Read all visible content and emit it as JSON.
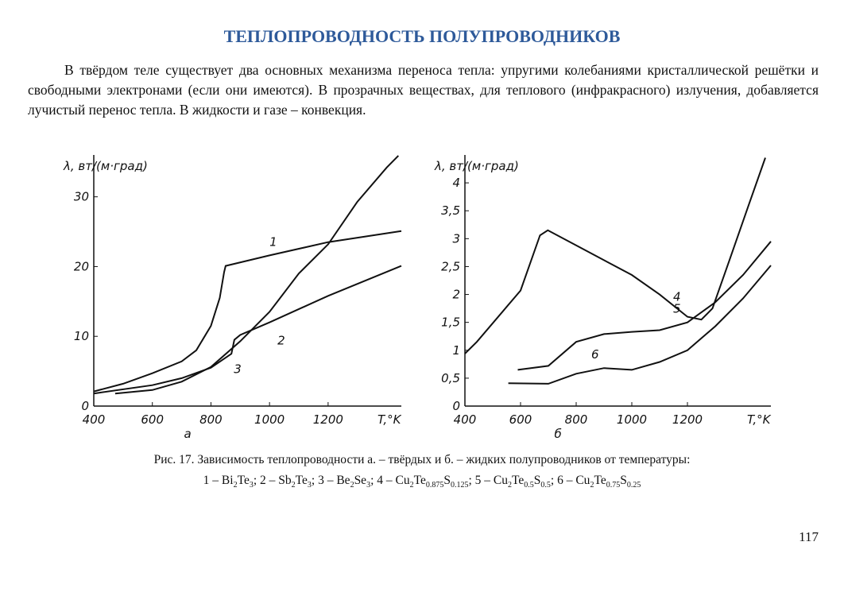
{
  "header": {
    "title": "ТЕПЛОПРОВОДНОСТЬ ПОЛУПРОВОДНИКОВ"
  },
  "paragraph": "В твёрдом теле существует два основных механизма переноса тепла: упругими колебаниями кристаллической решётки и свободными электронами (если они имеются). В прозрачных веществах, для теплового (инфракрасного) излучения, добавляется лучистый перенос тепла. В жидкости и газе – конвекция.",
  "chart_data": [
    {
      "type": "line",
      "subtitle": "а",
      "x_label": "T,°K",
      "y_label": "λ, вт/(м·град)",
      "xlim": [
        400,
        1450
      ],
      "ylim": [
        0,
        36
      ],
      "xticks": [
        400,
        600,
        800,
        1000,
        1200
      ],
      "yticks": [
        0,
        10,
        20,
        30
      ],
      "series": [
        {
          "name": "1",
          "color": "#111",
          "x": [
            400,
            500,
            600,
            700,
            750,
            800,
            830,
            845,
            850,
            1000,
            1200,
            1450
          ],
          "values": [
            2.1,
            3.2,
            4.7,
            6.4,
            8,
            11.5,
            15.5,
            19.2,
            20.1,
            21.6,
            23.5,
            25.1
          ]
        },
        {
          "name": "2",
          "color": "#111",
          "x": [
            400,
            600,
            700,
            800,
            870,
            880,
            900,
            1000,
            1200,
            1450
          ],
          "values": [
            1.8,
            3,
            4,
            5.5,
            7.5,
            9.5,
            10.2,
            12,
            15.8,
            20.1
          ]
        },
        {
          "name": "3",
          "color": "#111",
          "x": [
            473,
            600,
            700,
            800,
            900,
            1000,
            1100,
            1200,
            1300,
            1400,
            1440
          ],
          "values": [
            1.8,
            2.3,
            3.5,
            5.6,
            9.3,
            13.5,
            19,
            23.2,
            29.3,
            34.2,
            35.9
          ]
        }
      ]
    },
    {
      "type": "line",
      "subtitle": "б",
      "x_label": "T,°K",
      "y_label": "λ, вт/(м·град)",
      "xlim": [
        400,
        1500
      ],
      "ylim": [
        0,
        4.5
      ],
      "xticks": [
        400,
        600,
        800,
        1000,
        1200
      ],
      "yticks": [
        0,
        {
          "value": 0.5,
          "label": "0,5"
        },
        1,
        {
          "value": 1.5,
          "label": "1,5"
        },
        2,
        {
          "value": 2.5,
          "label": "2,5"
        },
        3,
        {
          "value": 3.5,
          "label": "3,5"
        },
        4
      ],
      "series": [
        {
          "name": "4",
          "color": "#111",
          "x": [
            400,
            443,
            600,
            670,
            698,
            800,
            1000,
            1100,
            1200,
            1250,
            1290,
            1350,
            1420,
            1480
          ],
          "values": [
            0.94,
            1.15,
            2.07,
            3.06,
            3.15,
            2.88,
            2.35,
            2,
            1.6,
            1.55,
            1.75,
            2.6,
            3.6,
            4.45
          ]
        },
        {
          "name": "5",
          "color": "#111",
          "x": [
            590,
            700,
            800,
            900,
            1000,
            1100,
            1200,
            1300,
            1400,
            1500
          ],
          "values": [
            0.65,
            0.72,
            1.15,
            1.29,
            1.33,
            1.36,
            1.5,
            1.86,
            2.35,
            2.95
          ]
        },
        {
          "name": "6",
          "color": "#111",
          "x": [
            556,
            700,
            800,
            900,
            1000,
            1100,
            1200,
            1300,
            1400,
            1500
          ],
          "values": [
            0.41,
            0.4,
            0.58,
            0.68,
            0.65,
            0.79,
            1,
            1.43,
            1.93,
            2.52
          ]
        }
      ]
    }
  ],
  "caption": {
    "line1": "Рис. 17. Зависимость теплопроводности а. – твёрдых и б. – жидких полупроводников от температуры:",
    "line2": [
      {
        "text": "1 – Bi"
      },
      {
        "sub": "2"
      },
      {
        "text": "Te"
      },
      {
        "sub": "3"
      },
      {
        "text": "; 2 – Sb"
      },
      {
        "sub": "2"
      },
      {
        "text": "Te"
      },
      {
        "sub": "3"
      },
      {
        "text": "; 3 – Be"
      },
      {
        "sub": "2"
      },
      {
        "text": "Se"
      },
      {
        "sub": "3"
      },
      {
        "text": "; 4 – Cu"
      },
      {
        "sub": "2"
      },
      {
        "text": "Te"
      },
      {
        "sub": "0.875"
      },
      {
        "text": "S"
      },
      {
        "sub": "0.125"
      },
      {
        "text": "; 5 – Cu"
      },
      {
        "sub": "2"
      },
      {
        "text": "Te"
      },
      {
        "sub": "0.5"
      },
      {
        "text": "S"
      },
      {
        "sub": "0.5"
      },
      {
        "text": "; 6 – Cu"
      },
      {
        "sub": "2"
      },
      {
        "text": "Te"
      },
      {
        "sub": "0.75"
      },
      {
        "text": "S"
      },
      {
        "sub": "0.25"
      }
    ]
  },
  "page_number": "117"
}
